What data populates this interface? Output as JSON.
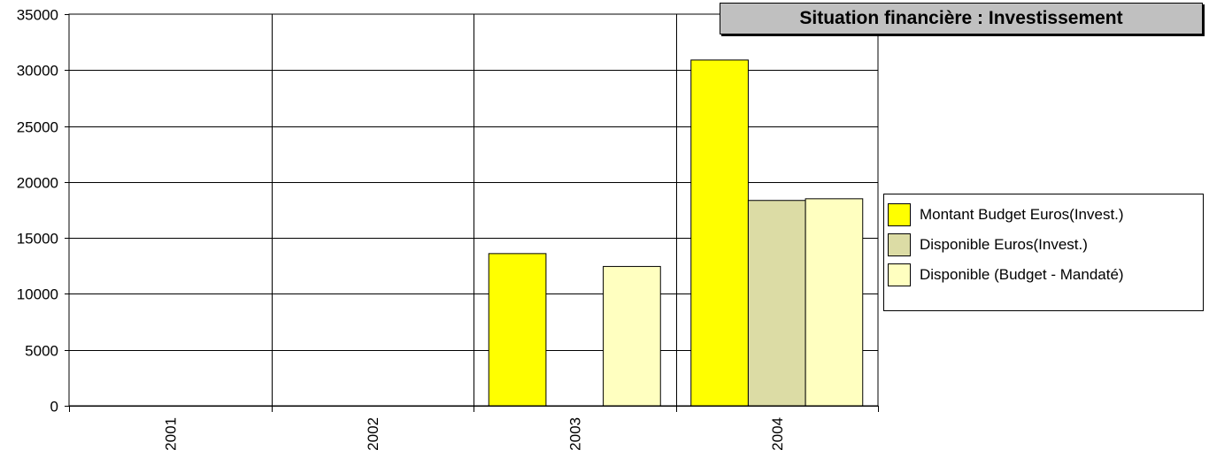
{
  "chart_data": {
    "type": "bar",
    "title": "Situation financière : Investissement",
    "categories": [
      "2001",
      "2002",
      "2003",
      "2004"
    ],
    "series": [
      {
        "name": "Montant Budget Euros(Invest.)",
        "color": "#ffff00",
        "values": [
          0,
          0,
          13600,
          30900
        ]
      },
      {
        "name": "Disponible Euros(Invest.)",
        "color": "#dcdca5",
        "values": [
          0,
          0,
          0,
          18350
        ]
      },
      {
        "name": "Disponible (Budget - Mandaté)",
        "color": "#ffffc0",
        "values": [
          0,
          0,
          12450,
          18500
        ]
      }
    ],
    "xlabel": "",
    "ylabel": "",
    "ylim": [
      0,
      35000
    ],
    "yticks": [
      "0",
      "5000",
      "10000",
      "15000",
      "20000",
      "25000",
      "30000",
      "35000"
    ],
    "grid": true,
    "legend_position": "right"
  }
}
